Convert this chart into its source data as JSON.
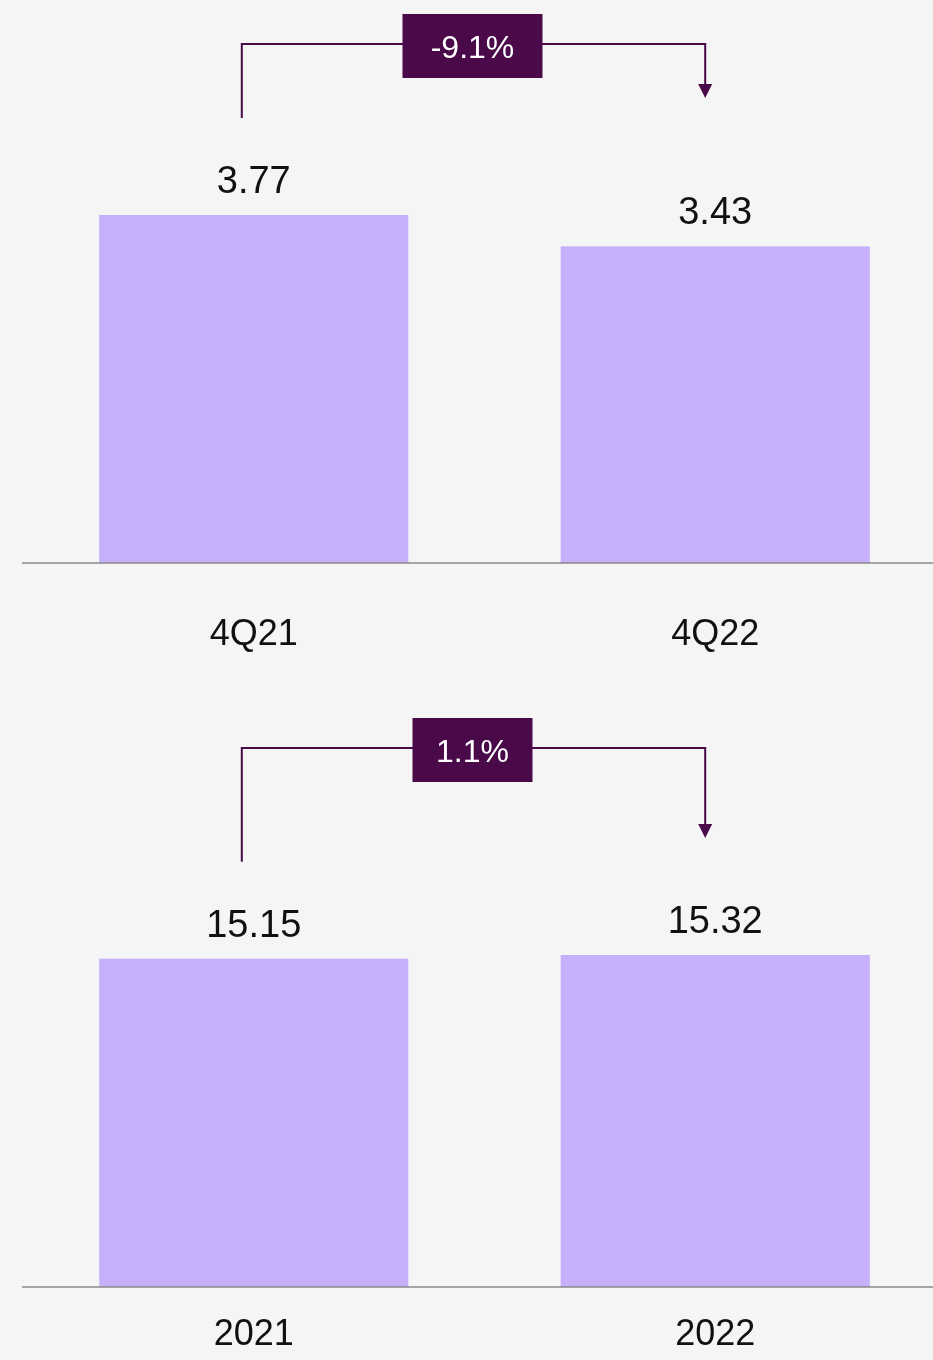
{
  "chart_data": [
    {
      "type": "bar",
      "categories": [
        "4Q21",
        "4Q22"
      ],
      "values": [
        3.77,
        3.43
      ],
      "color": "#c6b0fc",
      "data_labels": true,
      "annotations": [
        "-9.1%"
      ]
    },
    {
      "type": "bar",
      "categories": [
        "2021",
        "2022"
      ],
      "values": [
        15.15,
        15.32
      ],
      "color": "#c6b0fc",
      "data_labels": true,
      "annotations": [
        "1.1%"
      ]
    }
  ]
}
